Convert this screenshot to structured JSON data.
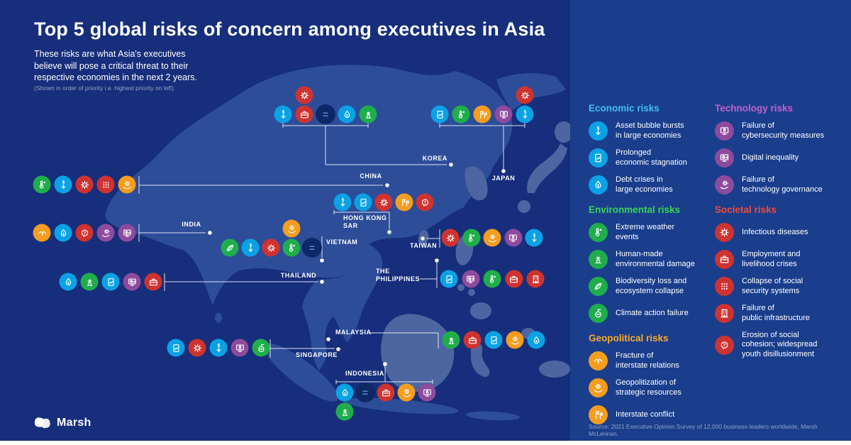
{
  "header": {
    "title": "Top 5 global risks of concern among executives in Asia",
    "subtitle": "These risks are what Asia's executives\nbelieve will pose a critical threat to their\nrespective economies in the next 2 years.",
    "note": "(Shown in order of priority i.e. highest priority on left)"
  },
  "brand": {
    "name": "Marsh"
  },
  "footer": {
    "source": "Source: 2021 Executive Opinion Survey of 12,000 business leaders worldwide, Marsh McLennan."
  },
  "tie": {
    "symbol": "=",
    "bg": "#0c2867",
    "fg": "#6d82c4"
  },
  "colors": {
    "background_left": "#162e7b",
    "background_right": "#1a3e8c",
    "land": "#2d4d99",
    "land_highlight": "#4d66a1",
    "connector": "#ffffff"
  },
  "categories": {
    "economic": {
      "title": "Economic risks",
      "header_color": "#41bdf4",
      "chip_color": "#0aa2e6"
    },
    "environmental": {
      "title": "Environmental risks",
      "header_color": "#3bd355",
      "chip_color": "#1fae4b"
    },
    "geopolitical": {
      "title": "Geopolitical risks",
      "header_color": "#f8a928",
      "chip_color": "#f49d1f"
    },
    "technology": {
      "title": "Technology risks",
      "header_color": "#c561cd",
      "chip_color": "#8e4b9d"
    },
    "societal": {
      "title": "Societal risks",
      "header_color": "#f04a3e",
      "chip_color": "#cf3330"
    }
  },
  "risks": {
    "asset-bubble": {
      "category": "economic",
      "icon": "dollar-decline-icon",
      "label": "Asset bubble bursts\nin large economies"
    },
    "economic-stagnation": {
      "category": "economic",
      "icon": "document-chart-icon",
      "label": "Prolonged\neconomic stagnation"
    },
    "debt-crises": {
      "category": "economic",
      "icon": "dollar-droplet-icon",
      "label": "Debt crises in\nlarge economies"
    },
    "extreme-weather": {
      "category": "environmental",
      "icon": "thermometer-sun-icon",
      "label": "Extreme weather\nevents"
    },
    "human-made-environmental-damage": {
      "category": "environmental",
      "icon": "industrial-pump-icon",
      "label": "Human-made\nenvironmental damage"
    },
    "biodiversity-loss": {
      "category": "environmental",
      "icon": "leaf-icon",
      "label": "Biodiversity loss and\necosystem collapse"
    },
    "climate-action-failure": {
      "category": "environmental",
      "icon": "sprout-globe-icon",
      "label": "Climate action failure"
    },
    "interstate-fracture": {
      "category": "geopolitical",
      "icon": "broken-handshake-icon",
      "label": "Fracture of\ninterstate relations"
    },
    "geopolitization": {
      "category": "geopolitical",
      "icon": "hands-globe-icon",
      "label": "Geopolitization of\nstrategic resources"
    },
    "interstate-conflict": {
      "category": "geopolitical",
      "icon": "flags-icon",
      "label": "Interstate conflict"
    },
    "cybersecurity-failure": {
      "category": "technology",
      "icon": "monitor-lock-icon",
      "label": "Failure of\ncybersecurity measures"
    },
    "digital-inequality": {
      "category": "technology",
      "icon": "monitor-chart-icon",
      "label": "Digital inequality"
    },
    "technology-governance-failure": {
      "category": "technology",
      "icon": "gear-hand-icon",
      "label": "Failure of\ntechnology governance"
    },
    "infectious-diseases": {
      "category": "societal",
      "icon": "virus-icon",
      "label": "Infectious diseases"
    },
    "employment-crises": {
      "category": "societal",
      "icon": "briefcase-icon",
      "label": "Employment and\nlivelihood crises"
    },
    "social-security-collapse": {
      "category": "societal",
      "icon": "dots-grid-icon",
      "label": "Collapse of social\nsecurity systems"
    },
    "public-infrastructure-failure": {
      "category": "societal",
      "icon": "building-icon",
      "label": "Failure of\npublic infrastructure"
    },
    "social-cohesion-erosion": {
      "category": "societal",
      "icon": "head-question-icon",
      "label": "Erosion of social\ncohesion; widespread\nyouth disillusionment"
    }
  },
  "legend": {
    "columns": [
      [
        {
          "category": "economic",
          "items": [
            "asset-bubble",
            "economic-stagnation",
            "debt-crises"
          ]
        },
        {
          "category": "environmental",
          "items": [
            "extreme-weather",
            "human-made-environmental-damage",
            "biodiversity-loss",
            "climate-action-failure"
          ]
        },
        {
          "category": "geopolitical",
          "items": [
            "interstate-fracture",
            "geopolitization",
            "interstate-conflict"
          ]
        }
      ],
      [
        {
          "category": "technology",
          "items": [
            "cybersecurity-failure",
            "digital-inequality",
            "technology-governance-failure"
          ]
        },
        {
          "category": "societal",
          "items": [
            "infectious-diseases",
            "employment-crises",
            "social-security-collapse",
            "public-infrastructure-failure",
            "social-cohesion-erosion"
          ]
        }
      ]
    ]
  },
  "map": {
    "countries": [
      {
        "id": "korea",
        "label": "KOREA",
        "sequence": [
          "asset-bubble",
          {
            "type": "stack",
            "risks": [
              "infectious-diseases",
              "employment-crises"
            ],
            "position": "above"
          },
          "=",
          "debt-crises",
          "human-made-environmental-damage"
        ]
      },
      {
        "id": "japan",
        "label": "JAPAN",
        "sequence": [
          "economic-stagnation",
          "extreme-weather",
          "interstate-conflict",
          "cybersecurity-failure",
          {
            "type": "stack",
            "risks": [
              "infectious-diseases",
              "asset-bubble"
            ],
            "position": "above"
          }
        ]
      },
      {
        "id": "china",
        "label": "CHINA",
        "sequence": [
          "extreme-weather",
          "asset-bubble",
          "infectious-diseases",
          "social-security-collapse",
          "geopolitization"
        ]
      },
      {
        "id": "india",
        "label": "INDIA",
        "sequence": [
          "interstate-fracture",
          "debt-crises",
          "social-cohesion-erosion",
          "technology-governance-failure",
          "digital-inequality"
        ]
      },
      {
        "id": "vietnam",
        "label": "VIETNAM",
        "sequence": [
          "biodiversity-loss",
          "asset-bubble",
          "infectious-diseases",
          {
            "type": "stack",
            "risks": [
              "geopolitization",
              "extreme-weather"
            ],
            "position": "above"
          },
          "="
        ]
      },
      {
        "id": "hong-kong",
        "label": "HONG KONG\nSAR",
        "sequence": [
          "asset-bubble",
          "economic-stagnation",
          "infectious-diseases",
          "interstate-conflict",
          "social-cohesion-erosion"
        ]
      },
      {
        "id": "taiwan",
        "label": "TAIWAN",
        "sequence": [
          "infectious-diseases",
          "extreme-weather",
          "geopolitization",
          "cybersecurity-failure",
          "asset-bubble"
        ]
      },
      {
        "id": "thailand",
        "label": "THAILAND",
        "sequence": [
          "debt-crises",
          "human-made-environmental-damage",
          "economic-stagnation",
          "digital-inequality",
          "employment-crises"
        ]
      },
      {
        "id": "philippines",
        "label": "THE\nPHILIPPINES",
        "sequence": [
          "economic-stagnation",
          "digital-inequality",
          "extreme-weather",
          "employment-crises",
          "public-infrastructure-failure"
        ]
      },
      {
        "id": "malaysia",
        "label": "MALAYSIA",
        "sequence": [
          "human-made-environmental-damage",
          "employment-crises",
          "economic-stagnation",
          "geopolitization",
          "debt-crises"
        ]
      },
      {
        "id": "singapore",
        "label": "SINGAPORE",
        "sequence": [
          "economic-stagnation",
          "infectious-diseases",
          "asset-bubble",
          "cybersecurity-failure",
          "climate-action-failure"
        ]
      },
      {
        "id": "indonesia",
        "label": "INDONESIA",
        "sequence": [
          {
            "type": "stack",
            "risks": [
              "debt-crises",
              "human-made-environmental-damage"
            ],
            "position": "below"
          },
          "=",
          "employment-crises",
          "geopolitization",
          "cybersecurity-failure"
        ]
      }
    ]
  }
}
